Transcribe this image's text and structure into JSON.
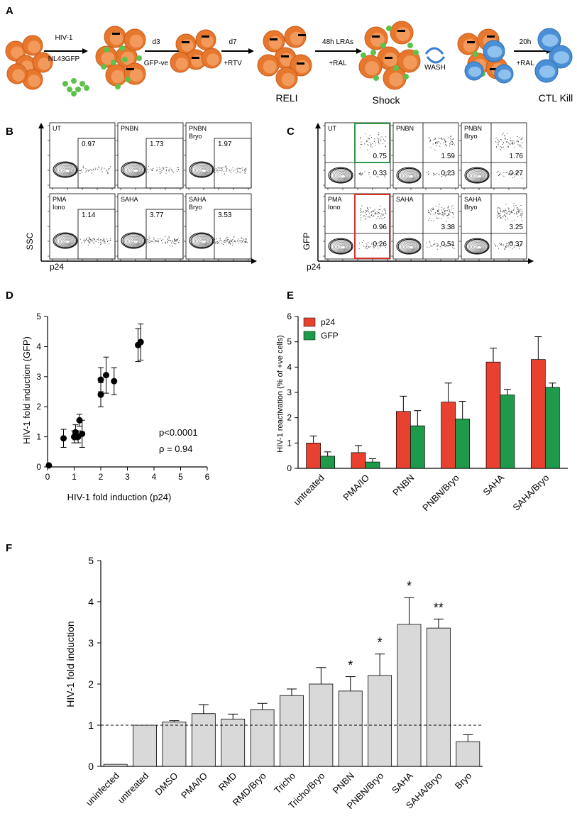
{
  "panels": {
    "a": "A",
    "b": "B",
    "c": "C",
    "d": "D",
    "e": "E",
    "f": "F"
  },
  "colors": {
    "cell_orange": "#e8772e",
    "cell_orange_light": "#f29a5c",
    "cell_blue": "#4a8fd6",
    "cell_blue_light": "#8fc1ee",
    "virus_green": "#5cc24a",
    "p24_red": "#e8412f",
    "gfp_green": "#1f9a4b",
    "bar_gray": "#d9d9d9",
    "gate_green": "#2d9a47",
    "gate_red": "#d6332b"
  },
  "schematic": {
    "step1_top": "HIV-1",
    "step1_bottom": "NL43GFP",
    "step2_top": "d3",
    "step2_bottom": "GFP-ve",
    "step3_top": "d7",
    "step3_bottom": "+RTV",
    "step4_top": "48h LRAs",
    "step4_bottom": "+RAL",
    "wash": "WASH",
    "step5_top": "20h",
    "step5_bottom": "+RAL",
    "label_reli": "RELI",
    "label_shock": "Shock",
    "label_kill": "CTL Kill"
  },
  "flow_b": {
    "ylabel": "SSC",
    "xlabel": "p24",
    "plots": [
      {
        "name": "UT",
        "value": "0.97"
      },
      {
        "name": "PNBN",
        "value": "1.73"
      },
      {
        "name": "PNBN\nBryo",
        "value": "1.97"
      },
      {
        "name": "PMA\nIono",
        "value": "1.14"
      },
      {
        "name": "SAHA",
        "value": "3.77"
      },
      {
        "name": "SAHA\nBryo",
        "value": "3.53"
      }
    ]
  },
  "flow_c": {
    "ylabel": "GFP",
    "xlabel": "p24",
    "plots": [
      {
        "name": "UT",
        "upper": "0.75",
        "lower": "0.33"
      },
      {
        "name": "PNBN",
        "upper": "1.59",
        "lower": "0.23"
      },
      {
        "name": "PNBN\nBryo",
        "upper": "1.76",
        "lower": "0.27"
      },
      {
        "name": "PMA\nIono",
        "upper": "0.96",
        "lower": "0.26"
      },
      {
        "name": "SAHA",
        "upper": "3.38",
        "lower": "0.51"
      },
      {
        "name": "SAHA\nBryo",
        "upper": "3.25",
        "lower": "0.37"
      }
    ]
  },
  "chart_data": [
    {
      "panel": "D",
      "type": "scatter",
      "xlabel": "HIV-1 fold induction (p24)",
      "ylabel": "HIV-1 fold induction (GFP)",
      "xlim": [
        0,
        6
      ],
      "ylim": [
        0,
        5
      ],
      "xticks": [
        "0",
        "1",
        "2",
        "3",
        "4",
        "5",
        "6"
      ],
      "yticks": [
        "0",
        "1",
        "2",
        "3",
        "4",
        "5"
      ],
      "annotations": [
        "p<0.0001",
        "ρ = 0.94"
      ],
      "points": [
        {
          "x": 0.05,
          "y": 0.05,
          "err": 0
        },
        {
          "x": 0.6,
          "y": 0.95,
          "err": 0.3
        },
        {
          "x": 1.0,
          "y": 1.0,
          "err": 0.2
        },
        {
          "x": 1.05,
          "y": 1.15,
          "err": 0.25
        },
        {
          "x": 1.15,
          "y": 1.0,
          "err": 0.2
        },
        {
          "x": 1.2,
          "y": 1.55,
          "err": 0.2
        },
        {
          "x": 1.3,
          "y": 1.1,
          "err": 0.45
        },
        {
          "x": 2.0,
          "y": 2.4,
          "err": 0.4
        },
        {
          "x": 2.0,
          "y": 2.9,
          "err": 0.4
        },
        {
          "x": 2.2,
          "y": 3.05,
          "err": 0.6
        },
        {
          "x": 2.5,
          "y": 2.85,
          "err": 0.45
        },
        {
          "x": 3.4,
          "y": 4.05,
          "err": 0.55
        },
        {
          "x": 3.5,
          "y": 4.15,
          "err": 0.6
        }
      ]
    },
    {
      "panel": "E",
      "type": "bar",
      "ylabel": "HIV-1 reactivation (% of +ve cells)",
      "ylim": [
        0,
        6
      ],
      "yticks": [
        "0",
        "1",
        "2",
        "3",
        "4",
        "5",
        "6"
      ],
      "categories": [
        "untreated",
        "PMA/IO",
        "PNBN",
        "PNBN/Bryo",
        "SAHA",
        "SAHA/Bryo"
      ],
      "legend": [
        "p24",
        "GFP"
      ],
      "series": [
        {
          "name": "p24",
          "values": [
            1.0,
            0.62,
            2.25,
            2.62,
            4.2,
            4.3
          ],
          "errors": [
            0.28,
            0.28,
            0.6,
            0.75,
            0.55,
            0.9
          ]
        },
        {
          "name": "GFP",
          "values": [
            0.48,
            0.25,
            1.68,
            1.95,
            2.9,
            3.2
          ],
          "errors": [
            0.17,
            0.13,
            0.6,
            0.7,
            0.22,
            0.17
          ]
        }
      ]
    },
    {
      "panel": "F",
      "type": "bar",
      "ylabel": "HIV-1 fold induction",
      "ylim": [
        0,
        5
      ],
      "yticks": [
        "0",
        "1",
        "2",
        "3",
        "4",
        "5"
      ],
      "reference_line": 1,
      "categories": [
        "uninfected",
        "untreated",
        "DMSO",
        "PMA/IO",
        "RMD",
        "RMD/Bryo",
        "Tricho",
        "Tricho/Bryo",
        "PNBN",
        "PNBN/Bryo",
        "SAHA",
        "SAHA/Bryo",
        "Bryo"
      ],
      "values": [
        0.05,
        1.0,
        1.08,
        1.28,
        1.15,
        1.38,
        1.72,
        2.0,
        1.83,
        2.21,
        3.45,
        3.36,
        0.6
      ],
      "errors": [
        0,
        0,
        0.03,
        0.22,
        0.12,
        0.15,
        0.16,
        0.4,
        0.35,
        0.52,
        0.65,
        0.22,
        0.17
      ],
      "significance": [
        "",
        "",
        "",
        "",
        "",
        "",
        "",
        "",
        "*",
        "*",
        "*",
        "**",
        ""
      ]
    }
  ]
}
